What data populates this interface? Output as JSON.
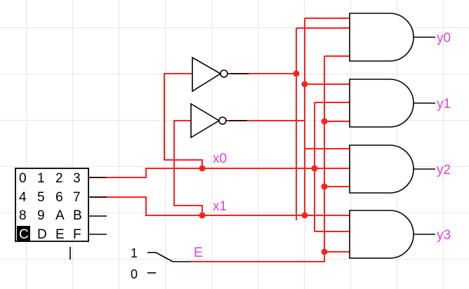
{
  "keypad": {
    "keys": [
      "0",
      "1",
      "2",
      "3",
      "4",
      "5",
      "6",
      "7",
      "8",
      "9",
      "A",
      "B",
      "C",
      "D",
      "E",
      "F"
    ],
    "selected": "C"
  },
  "signals": {
    "x0": "x0",
    "x1": "x1",
    "enable": "E",
    "outputs": [
      "y0",
      "y1",
      "y2",
      "y3"
    ]
  },
  "switch": {
    "high_label": "1",
    "low_label": "0"
  },
  "colors": {
    "wire": "#ff2020",
    "label": "#e040e0",
    "grid": "#e6e6e6"
  }
}
